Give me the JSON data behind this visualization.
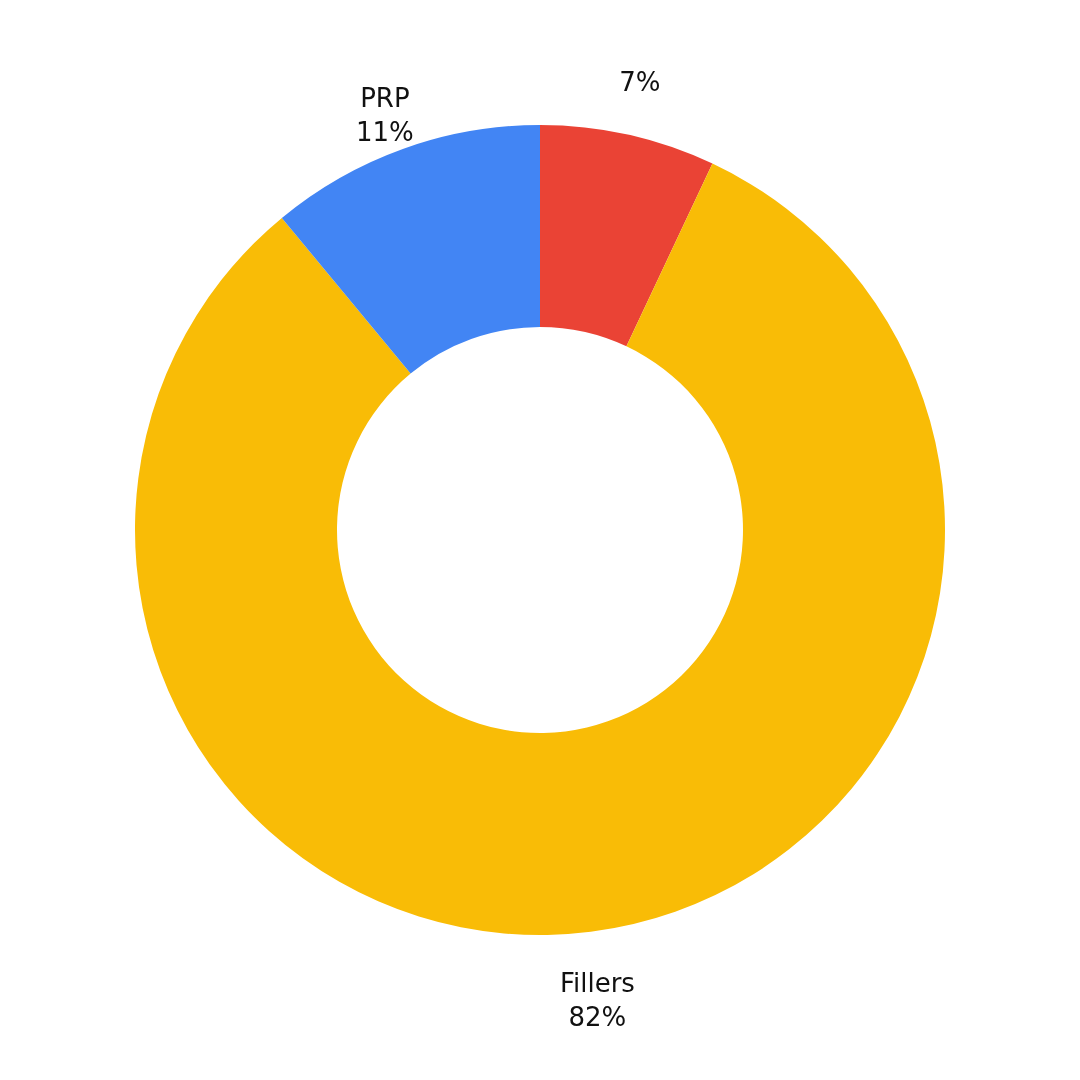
{
  "chart_data": {
    "type": "donut",
    "categories": [
      null,
      "Fillers",
      "PRP"
    ],
    "values": [
      7,
      82,
      11
    ],
    "value_labels": [
      "7%",
      "82%",
      "11%"
    ],
    "colors": [
      "#ea4335",
      "#f9bc06",
      "#4285f4"
    ]
  }
}
